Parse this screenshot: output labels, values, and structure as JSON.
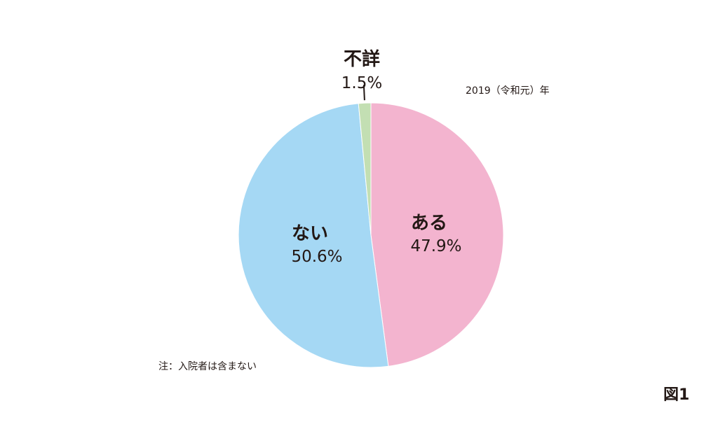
{
  "chart_data": {
    "type": "pie",
    "start_angle_deg": 0,
    "direction": "clockwise",
    "slices": [
      {
        "label": "ある",
        "value": 47.9,
        "display": "47.9%",
        "color": "#F3B4CF"
      },
      {
        "label": "ない",
        "value": 50.6,
        "display": "50.6%",
        "color": "#A5D8F4"
      },
      {
        "label": "不詳",
        "value": 1.5,
        "display": "1.5%",
        "color": "#C3DFB3"
      }
    ],
    "annotations": {
      "year": "2019（令和元）年",
      "note": "注：入院者は含まない",
      "figure": "図1"
    }
  }
}
